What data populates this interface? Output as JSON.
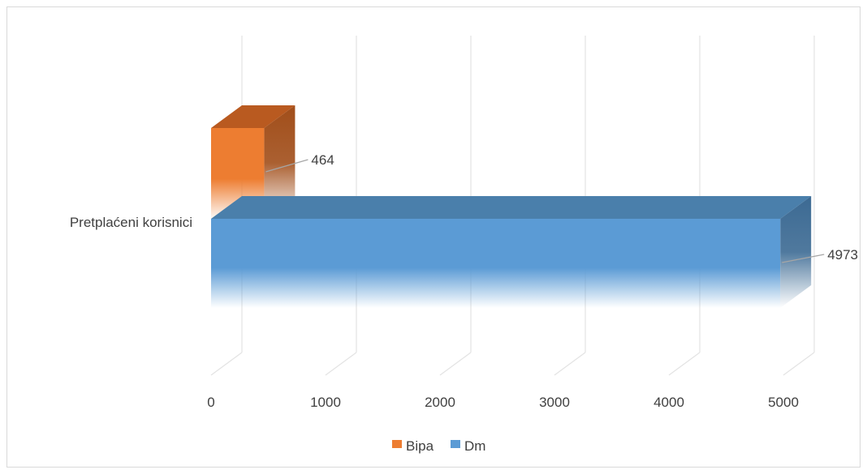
{
  "chart_data": {
    "type": "bar",
    "orientation": "horizontal",
    "style": "3d",
    "categories": [
      "Pretplaćeni korisnici"
    ],
    "series": [
      {
        "name": "Bipa",
        "values": [
          464
        ],
        "color": "#ed7d31"
      },
      {
        "name": "Dm",
        "values": [
          4973
        ],
        "color": "#5b9bd5"
      }
    ],
    "xlim": [
      0,
      5000
    ],
    "xticks": [
      "0",
      "1000",
      "2000",
      "3000",
      "4000",
      "5000"
    ],
    "data_labels": [
      "464",
      "4973"
    ],
    "grid": true,
    "legend": "bottom-center"
  }
}
